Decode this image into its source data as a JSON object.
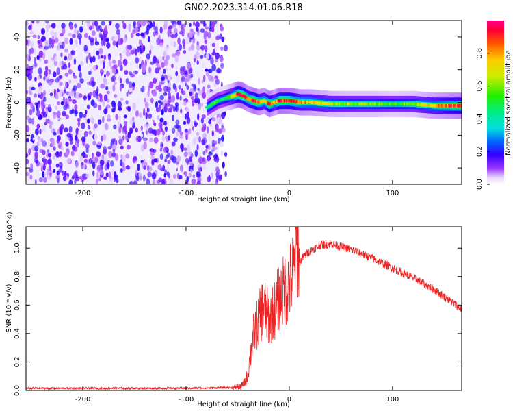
{
  "title": "GN02.2023.314.01.06.R18",
  "chart_data": [
    {
      "type": "heatmap",
      "xlabel": "Height of straight line (km)",
      "ylabel": "Frequency (Hz)",
      "xlim": [
        -255,
        167
      ],
      "ylim": [
        -50,
        50
      ],
      "xticks": [
        -200,
        -100,
        0,
        100
      ],
      "yticks": [
        -40,
        -20,
        0,
        20,
        40
      ],
      "colorbar": {
        "label": "Normalized spectral amplitude",
        "ticks": [
          "0.0",
          "0.2",
          "0.4",
          "0.6",
          "0.8"
        ],
        "range": [
          0,
          1
        ]
      },
      "noise_region_x": [
        -255,
        -68
      ],
      "ridge": [
        {
          "x": -80,
          "y": -3,
          "v": 0.45
        },
        {
          "x": -75,
          "y": -1,
          "v": 0.55
        },
        {
          "x": -70,
          "y": 1,
          "v": 0.5
        },
        {
          "x": -65,
          "y": 2,
          "v": 0.45
        },
        {
          "x": -60,
          "y": 3,
          "v": 0.55
        },
        {
          "x": -55,
          "y": 4,
          "v": 0.7
        },
        {
          "x": -50,
          "y": 5,
          "v": 0.95
        },
        {
          "x": -45,
          "y": 4,
          "v": 0.95
        },
        {
          "x": -40,
          "y": 2,
          "v": 0.8
        },
        {
          "x": -35,
          "y": 1,
          "v": 0.97
        },
        {
          "x": -30,
          "y": 0,
          "v": 0.85
        },
        {
          "x": -25,
          "y": 1,
          "v": 0.75
        },
        {
          "x": -20,
          "y": -1,
          "v": 0.96
        },
        {
          "x": -15,
          "y": 0,
          "v": 0.7
        },
        {
          "x": -10,
          "y": 1,
          "v": 0.96
        },
        {
          "x": 0,
          "y": 1,
          "v": 0.9
        },
        {
          "x": 10,
          "y": 0,
          "v": 0.8
        },
        {
          "x": 20,
          "y": 0,
          "v": 0.75
        },
        {
          "x": 40,
          "y": -1,
          "v": 0.65
        },
        {
          "x": 60,
          "y": -1,
          "v": 0.6
        },
        {
          "x": 80,
          "y": -1,
          "v": 0.6
        },
        {
          "x": 100,
          "y": -1,
          "v": 0.55
        },
        {
          "x": 120,
          "y": -1,
          "v": 0.6
        },
        {
          "x": 140,
          "y": -2,
          "v": 0.75
        },
        {
          "x": 167,
          "y": -2,
          "v": 0.9
        }
      ]
    },
    {
      "type": "line",
      "xlabel": "Height of straight line (km)",
      "ylabel": "SNR (10 * v/v)",
      "y_multiplier": "(x10^4)",
      "xlim": [
        -255,
        167
      ],
      "ylim": [
        0,
        1.15
      ],
      "xticks": [
        -200,
        -100,
        0,
        100
      ],
      "yticks": [
        "0.0",
        "0.2",
        "0.4",
        "0.6",
        "0.8",
        "1.0"
      ],
      "series": [
        {
          "color": "#ee2222",
          "x": [
            -255,
            -200,
            -150,
            -100,
            -60,
            -53,
            -50,
            -48,
            -45,
            -42,
            -40,
            -37,
            -35,
            -32,
            -30,
            -25,
            -20,
            -15,
            -10,
            -5,
            0,
            5,
            7,
            10,
            15,
            20,
            25,
            30,
            40,
            50,
            60,
            80,
            100,
            120,
            140,
            150,
            167
          ],
          "y": [
            0.015,
            0.015,
            0.015,
            0.015,
            0.02,
            0.02,
            0.03,
            0.02,
            0.04,
            0.07,
            0.12,
            0.28,
            0.38,
            0.45,
            0.48,
            0.6,
            0.5,
            0.55,
            0.65,
            0.7,
            0.75,
            0.85,
            1.05,
            0.9,
            0.95,
            0.98,
            1.0,
            1.02,
            1.03,
            1.01,
            0.99,
            0.93,
            0.86,
            0.79,
            0.71,
            0.66,
            0.57
          ]
        }
      ]
    }
  ]
}
